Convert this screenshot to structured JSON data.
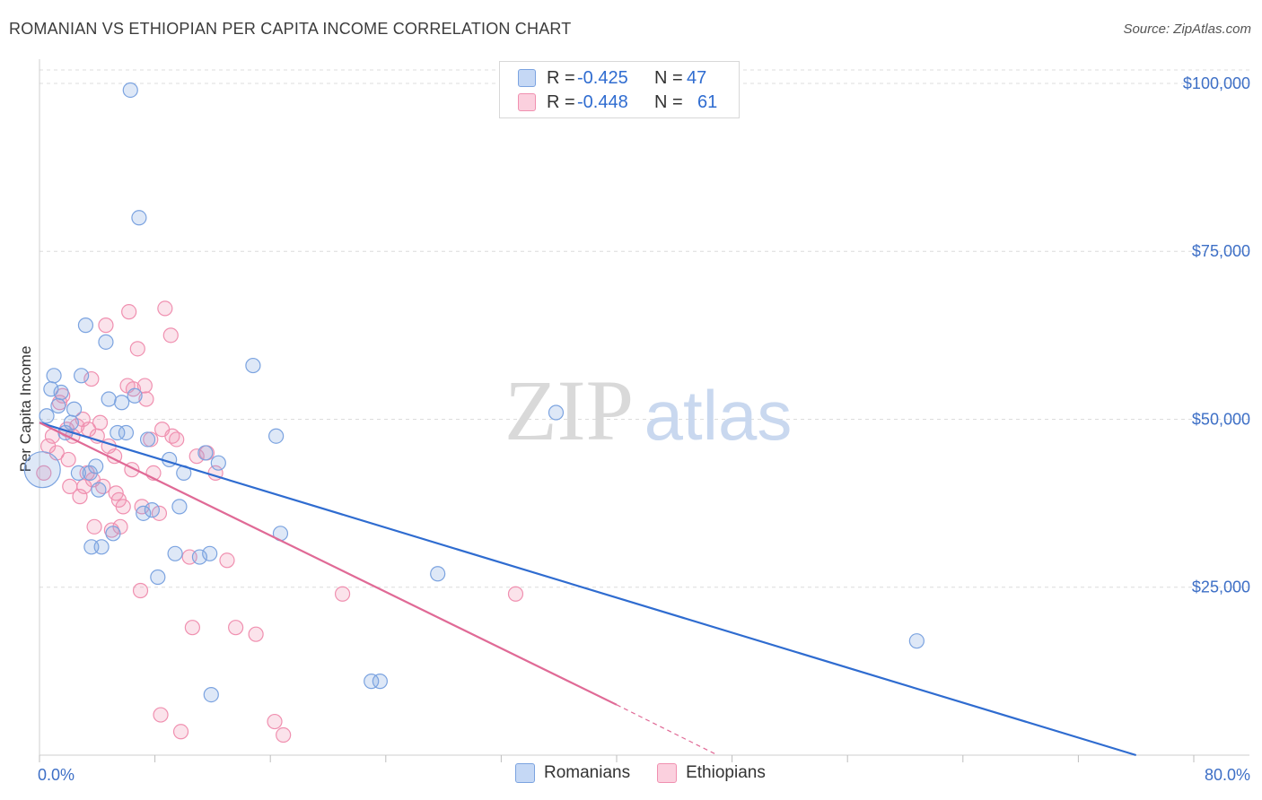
{
  "header": {
    "title": "ROMANIAN VS ETHIOPIAN PER CAPITA INCOME CORRELATION CHART",
    "source": "Source: ZipAtlas.com"
  },
  "watermark": {
    "zip": "ZIP",
    "atlas": "atlas"
  },
  "legend": {
    "rows": [
      {
        "r_label": "R =",
        "r_value": "-0.425",
        "n_label": "N =",
        "n_value": "47",
        "color": "#7ba3e0"
      },
      {
        "r_label": "R =",
        "r_value": "-0.448",
        "n_label": "N =",
        "n_value": "61",
        "color": "#f090b0"
      }
    ]
  },
  "bottom_legend": {
    "items": [
      "Romanians",
      "Ethiopians"
    ]
  },
  "chart_data": {
    "type": "scatter",
    "title": "ROMANIAN VS ETHIOPIAN PER CAPITA INCOME CORRELATION CHART",
    "xlabel": "",
    "ylabel": "Per Capita Income",
    "xlim": [
      0,
      80
    ],
    "ylim": [
      0,
      102000
    ],
    "x_tick_labels": [
      "0.0%",
      "80.0%"
    ],
    "y_ticks": [
      25000,
      50000,
      75000,
      100000
    ],
    "y_tick_labels": [
      "$25,000",
      "$50,000",
      "$75,000",
      "$100,000"
    ],
    "grid": true,
    "colors": {
      "Romanians": "#7ba3e0",
      "Ethiopians": "#f090b0",
      "romanian_line": "#2f6cd0",
      "ethiopian_line": "#e06a96"
    },
    "series": [
      {
        "name": "Romanians",
        "points": [
          [
            0.2,
            42500
          ],
          [
            0.5,
            50500
          ],
          [
            0.8,
            54500
          ],
          [
            1.0,
            56500
          ],
          [
            1.3,
            52000
          ],
          [
            1.5,
            54000
          ],
          [
            1.8,
            48000
          ],
          [
            2.2,
            49500
          ],
          [
            2.4,
            51500
          ],
          [
            2.7,
            42000
          ],
          [
            2.9,
            56500
          ],
          [
            3.2,
            64000
          ],
          [
            3.5,
            42000
          ],
          [
            3.6,
            31000
          ],
          [
            3.9,
            43000
          ],
          [
            4.1,
            39500
          ],
          [
            4.3,
            31000
          ],
          [
            4.6,
            61500
          ],
          [
            4.8,
            53000
          ],
          [
            5.1,
            33000
          ],
          [
            5.4,
            48000
          ],
          [
            5.7,
            52500
          ],
          [
            6.0,
            48000
          ],
          [
            6.3,
            99000
          ],
          [
            6.6,
            53500
          ],
          [
            6.9,
            80000
          ],
          [
            7.2,
            36000
          ],
          [
            7.5,
            47000
          ],
          [
            7.8,
            36500
          ],
          [
            8.2,
            26500
          ],
          [
            9.0,
            44000
          ],
          [
            9.4,
            30000
          ],
          [
            9.7,
            37000
          ],
          [
            10.0,
            42000
          ],
          [
            11.1,
            29500
          ],
          [
            11.5,
            45000
          ],
          [
            11.8,
            30000
          ],
          [
            11.9,
            9000
          ],
          [
            12.4,
            43500
          ],
          [
            14.8,
            58000
          ],
          [
            16.4,
            47500
          ],
          [
            16.7,
            33000
          ],
          [
            23.0,
            11000
          ],
          [
            23.6,
            11000
          ],
          [
            27.6,
            27000
          ],
          [
            35.8,
            51000
          ],
          [
            60.8,
            17000
          ]
        ]
      },
      {
        "name": "Ethiopians",
        "points": [
          [
            0.3,
            42000
          ],
          [
            0.6,
            46000
          ],
          [
            0.9,
            47500
          ],
          [
            1.2,
            45000
          ],
          [
            1.4,
            52500
          ],
          [
            1.6,
            53500
          ],
          [
            1.9,
            48500
          ],
          [
            2.1,
            40000
          ],
          [
            2.3,
            47500
          ],
          [
            2.6,
            49000
          ],
          [
            2.8,
            38500
          ],
          [
            3.0,
            50000
          ],
          [
            3.1,
            40000
          ],
          [
            3.3,
            42000
          ],
          [
            3.4,
            48500
          ],
          [
            3.6,
            56000
          ],
          [
            3.8,
            34000
          ],
          [
            4.0,
            47500
          ],
          [
            4.2,
            49500
          ],
          [
            4.4,
            40000
          ],
          [
            4.6,
            64000
          ],
          [
            4.8,
            46000
          ],
          [
            5.0,
            33500
          ],
          [
            5.2,
            44500
          ],
          [
            5.3,
            39000
          ],
          [
            5.5,
            38000
          ],
          [
            5.6,
            34000
          ],
          [
            5.8,
            37000
          ],
          [
            6.1,
            55000
          ],
          [
            6.2,
            66000
          ],
          [
            6.5,
            54500
          ],
          [
            6.8,
            60500
          ],
          [
            7.0,
            24500
          ],
          [
            7.1,
            37000
          ],
          [
            7.3,
            55000
          ],
          [
            7.4,
            53000
          ],
          [
            7.7,
            47000
          ],
          [
            7.9,
            42000
          ],
          [
            8.3,
            36000
          ],
          [
            8.5,
            48500
          ],
          [
            8.7,
            66500
          ],
          [
            9.1,
            62500
          ],
          [
            9.2,
            47500
          ],
          [
            9.5,
            47000
          ],
          [
            10.4,
            29500
          ],
          [
            10.6,
            19000
          ],
          [
            10.9,
            44500
          ],
          [
            11.6,
            45000
          ],
          [
            12.2,
            42000
          ],
          [
            13.0,
            29000
          ],
          [
            13.6,
            19000
          ],
          [
            15.0,
            18000
          ],
          [
            16.3,
            5000
          ],
          [
            16.9,
            3000
          ],
          [
            21.0,
            24000
          ],
          [
            33.0,
            24000
          ],
          [
            8.4,
            6000
          ],
          [
            9.8,
            3500
          ],
          [
            6.4,
            42500
          ],
          [
            3.7,
            41000
          ],
          [
            2.0,
            44000
          ]
        ]
      }
    ],
    "trend_lines": [
      {
        "series": "Romanians",
        "x": [
          0,
          76
        ],
        "y": [
          49500,
          0
        ],
        "style": "solid"
      },
      {
        "series": "Ethiopians",
        "x": [
          0,
          40
        ],
        "y": [
          49500,
          7500
        ],
        "style": "solid"
      },
      {
        "series": "Ethiopians",
        "x": [
          40,
          47
        ],
        "y": [
          7500,
          0
        ],
        "style": "dashed"
      }
    ]
  }
}
